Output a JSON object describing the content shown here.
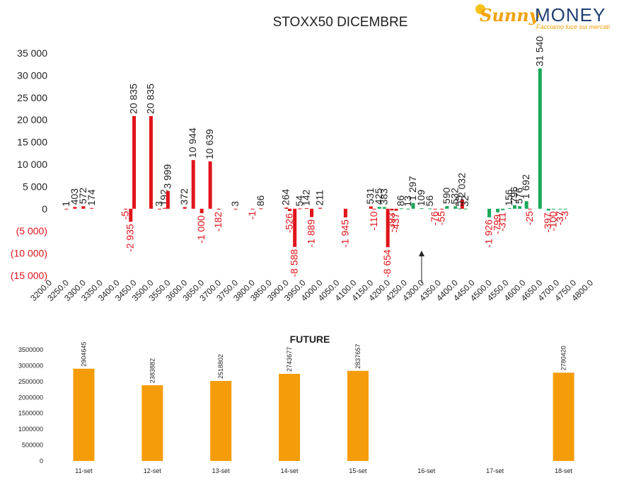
{
  "brand": {
    "name_part1": "Sunny",
    "name_part2": "MONEY",
    "tagline": "Facciamo luce sui mercati"
  },
  "colors": {
    "positive": "#1aa85a",
    "negative": "#e0141b",
    "future_bar": "#f59c0b",
    "text": "#222222",
    "negative_tick": "#e0141b"
  },
  "chart_data": [
    {
      "type": "bar",
      "title": "STOXX50 DICEMBRE",
      "xlabel": "",
      "ylabel": "",
      "ylim": [
        -15000,
        35000
      ],
      "y_ticks": [
        {
          "value": 35000,
          "label": "35 000"
        },
        {
          "value": 30000,
          "label": "30 000"
        },
        {
          "value": 25000,
          "label": "25 000"
        },
        {
          "value": 20000,
          "label": "20 000"
        },
        {
          "value": 15000,
          "label": "15 000"
        },
        {
          "value": 10000,
          "label": "10 000"
        },
        {
          "value": 5000,
          "label": "5 000"
        },
        {
          "value": 0,
          "label": "0"
        },
        {
          "value": -5000,
          "label": "(5 000)"
        },
        {
          "value": -10000,
          "label": "(10 000)"
        },
        {
          "value": -15000,
          "label": "(15 000)"
        }
      ],
      "categories": [
        "3200.0",
        "3250.0",
        "3300.0",
        "3350.0",
        "3400.0",
        "3450.0",
        "3500.0",
        "3550.0",
        "3600.0",
        "3650.0",
        "3700.0",
        "3750.0",
        "3800.0",
        "3850.0",
        "3900.0",
        "3950.0",
        "4000.0",
        "4050.0",
        "4100.0",
        "4150.0",
        "4200.0",
        "4250.0",
        "4300.0",
        "4350.0",
        "4400.0",
        "4450.0",
        "4500.0",
        "4550.0",
        "4600.0",
        "4650.0",
        "4700.0",
        "4750.0",
        "4800.0"
      ],
      "grid": false,
      "legend": "none",
      "marker": {
        "strike": 4300,
        "label": "↑"
      },
      "series": [
        {
          "color": "red",
          "points": [
            {
              "x": 3250,
              "y": 1,
              "label": "1"
            },
            {
              "x": 3275,
              "y": 403,
              "label": "403"
            },
            {
              "x": 3300,
              "y": 572,
              "label": "572"
            },
            {
              "x": 3325,
              "y": 174,
              "label": "174"
            },
            {
              "x": 3425,
              "y": -5,
              "label": "-5"
            },
            {
              "x": 3440,
              "y": -2935,
              "label": "-2 935"
            },
            {
              "x": 3450,
              "y": 20835,
              "label": "20 835"
            },
            {
              "x": 3500,
              "y": 20835,
              "label": "20 835"
            },
            {
              "x": 3525,
              "y": 3,
              "label": "3"
            },
            {
              "x": 3540,
              "y": 192,
              "label": "192"
            },
            {
              "x": 3550,
              "y": 3999,
              "label": "3 999"
            },
            {
              "x": 3600,
              "y": 372,
              "label": "372"
            },
            {
              "x": 3625,
              "y": 10944,
              "label": "10 944"
            },
            {
              "x": 3650,
              "y": -1000,
              "label": "-1 000"
            },
            {
              "x": 3675,
              "y": 10639,
              "label": "10 639"
            },
            {
              "x": 3700,
              "y": -182,
              "label": "-182"
            },
            {
              "x": 3750,
              "y": 3,
              "label": "3"
            },
            {
              "x": 3800,
              "y": -1,
              "label": "-1"
            },
            {
              "x": 3825,
              "y": 86,
              "label": "86"
            },
            {
              "x": 3900,
              "y": 264,
              "label": "264"
            },
            {
              "x": 3910,
              "y": -526,
              "label": "-526"
            },
            {
              "x": 3925,
              "y": -8588,
              "label": "-8 588"
            },
            {
              "x": 3940,
              "y": 54,
              "label": "54"
            },
            {
              "x": 3960,
              "y": 142,
              "label": "142"
            },
            {
              "x": 3975,
              "y": -1889,
              "label": "-1 889"
            },
            {
              "x": 4000,
              "y": 211,
              "label": "211"
            },
            {
              "x": 4075,
              "y": -1945,
              "label": "-1 945"
            },
            {
              "x": 4150,
              "y": 531,
              "label": "531"
            },
            {
              "x": 4160,
              "y": -110,
              "label": "-110"
            },
            {
              "x": 4200,
              "y": -8654,
              "label": "-8 654"
            },
            {
              "x": 4212,
              "y": -393,
              "label": "-393"
            },
            {
              "x": 4225,
              "y": -437,
              "label": "-437"
            },
            {
              "x": 4340,
              "y": -76,
              "label": "-76"
            },
            {
              "x": 4360,
              "y": -55,
              "label": "-55"
            },
            {
              "x": 4420,
              "y": 2032,
              "label": "2 032"
            },
            {
              "x": 4620,
              "y": -25,
              "label": "-25"
            }
          ]
        },
        {
          "color": "green",
          "points": [
            {
              "x": 4175,
              "y": 425,
              "label": "425"
            },
            {
              "x": 4190,
              "y": 383,
              "label": "383"
            },
            {
              "x": 4240,
              "y": 86,
              "label": "86"
            },
            {
              "x": 4260,
              "y": 13,
              "label": "13"
            },
            {
              "x": 4275,
              "y": 1297,
              "label": "1 297"
            },
            {
              "x": 4300,
              "y": 109,
              "label": "109"
            },
            {
              "x": 4325,
              "y": 56,
              "label": "56"
            },
            {
              "x": 4375,
              "y": 590,
              "label": "590"
            },
            {
              "x": 4400,
              "y": 532,
              "label": "532"
            },
            {
              "x": 4412,
              "y": 55,
              "label": "55"
            },
            {
              "x": 4430,
              "y": 32,
              "label": "32"
            },
            {
              "x": 4500,
              "y": -1926,
              "label": "-1 926"
            },
            {
              "x": 4525,
              "y": -799,
              "label": "-799"
            },
            {
              "x": 4540,
              "y": -311,
              "label": "-311"
            },
            {
              "x": 4560,
              "y": 156,
              "label": "156"
            },
            {
              "x": 4575,
              "y": 796,
              "label": "796"
            },
            {
              "x": 4590,
              "y": 576,
              "label": "576"
            },
            {
              "x": 4610,
              "y": 1692,
              "label": "1 692"
            },
            {
              "x": 4650,
              "y": 31540,
              "label": "31 540"
            },
            {
              "x": 4675,
              "y": -397,
              "label": "-397"
            },
            {
              "x": 4690,
              "y": -100,
              "label": "-100"
            },
            {
              "x": 4710,
              "y": -37,
              "label": "-37"
            },
            {
              "x": 4725,
              "y": -3,
              "label": "-3"
            }
          ]
        }
      ]
    },
    {
      "type": "bar",
      "title": "FUTURE",
      "xlabel": "",
      "ylabel": "",
      "ylim": [
        0,
        3500000
      ],
      "y_ticks": [
        {
          "value": 3500000,
          "label": "3500000"
        },
        {
          "value": 3000000,
          "label": "3000000"
        },
        {
          "value": 2500000,
          "label": "2500000"
        },
        {
          "value": 2000000,
          "label": "2000000"
        },
        {
          "value": 1500000,
          "label": "1500000"
        },
        {
          "value": 1000000,
          "label": "1000000"
        },
        {
          "value": 500000,
          "label": "500000"
        },
        {
          "value": 0,
          "label": "0"
        }
      ],
      "categories": [
        "11-set",
        "12-set",
        "13-set",
        "14-set",
        "15-set",
        "16-set",
        "17-set",
        "18-set"
      ],
      "values": [
        2904645,
        2383882,
        2518802,
        2743677,
        2837657,
        null,
        null,
        2780420
      ],
      "value_labels": [
        "2904645",
        "2383882",
        "2518802",
        "2743677",
        "2837657",
        "",
        "",
        "2780420"
      ],
      "grid": false,
      "legend": "none"
    }
  ]
}
